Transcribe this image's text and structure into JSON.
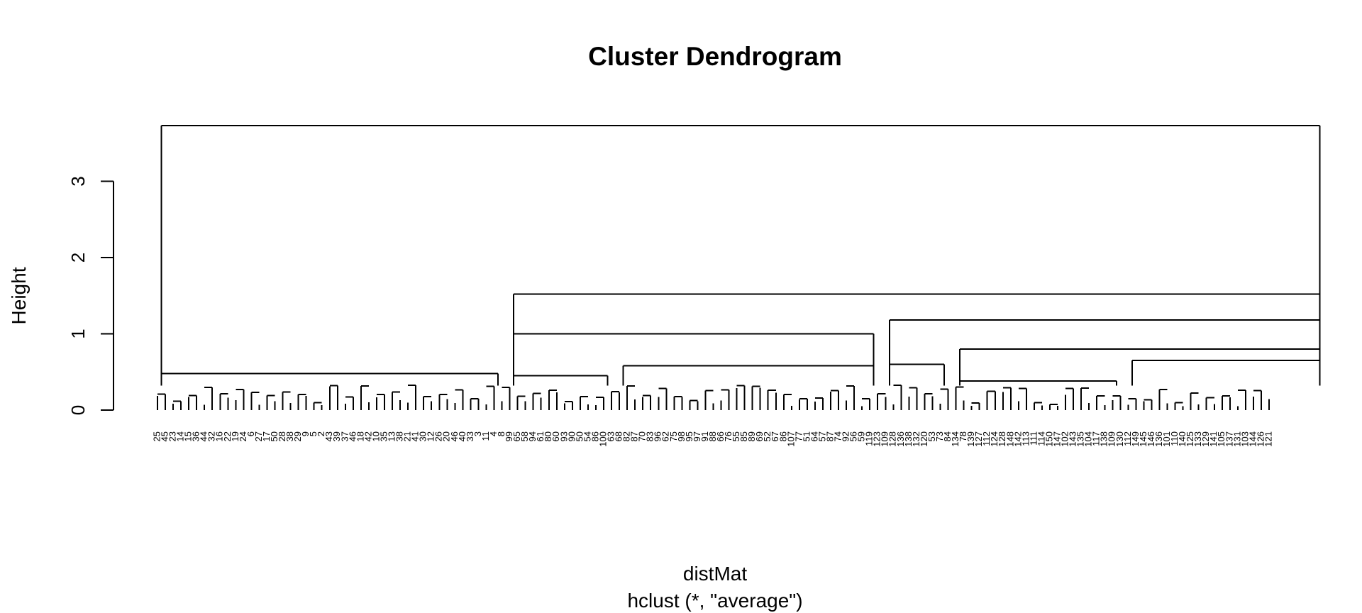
{
  "chart_data": {
    "type": "dendrogram",
    "title": "Cluster Dendrogram",
    "xlabel": "distMat",
    "sublabel": "hclust (*, \"average\")",
    "ylabel": "Height",
    "yticks": [
      0,
      1,
      2,
      3
    ],
    "ylim": [
      0,
      3.8
    ],
    "leaf_labels": [
      "25",
      "45",
      "23",
      "14",
      "15",
      "36",
      "44",
      "32",
      "16",
      "22",
      "19",
      "24",
      "6",
      "27",
      "17",
      "50",
      "28",
      "38",
      "29",
      "9",
      "5",
      "2",
      "43",
      "39",
      "37",
      "46",
      "18",
      "42",
      "10",
      "35",
      "13",
      "38",
      "21",
      "41",
      "30",
      "12",
      "26",
      "20",
      "46",
      "40",
      "33",
      "3",
      "11",
      "4",
      "8",
      "99",
      "65",
      "58",
      "94",
      "61",
      "80",
      "60",
      "93",
      "90",
      "50",
      "54",
      "86",
      "100",
      "63",
      "68",
      "82",
      "87",
      "70",
      "83",
      "96",
      "62",
      "75",
      "98",
      "95",
      "97",
      "91",
      "88",
      "66",
      "76",
      "55",
      "85",
      "89",
      "69",
      "52",
      "67",
      "86",
      "107",
      "77",
      "51",
      "64",
      "57",
      "87",
      "74",
      "92",
      "56",
      "59",
      "119",
      "123",
      "109",
      "128",
      "136",
      "138",
      "132",
      "120",
      "53",
      "73",
      "84",
      "134",
      "78",
      "139",
      "127",
      "112",
      "124",
      "128",
      "148",
      "142",
      "113",
      "111",
      "114",
      "150",
      "147",
      "102",
      "143",
      "135",
      "104",
      "117",
      "138",
      "109",
      "130",
      "112",
      "149",
      "145",
      "146",
      "136",
      "101",
      "110",
      "140",
      "125",
      "133",
      "129",
      "141",
      "105",
      "137",
      "131",
      "103",
      "144",
      "126",
      "121"
    ],
    "merges": [
      {
        "left": 0,
        "right": 44,
        "height": 0.48
      },
      {
        "left": 45,
        "right": 92,
        "height": 1.0
      },
      {
        "left": 93,
        "right": 149,
        "height": 1.18
      },
      {
        "left": 45,
        "right": 149,
        "height": 1.52
      },
      {
        "left": 0,
        "right": 149,
        "height": 3.73
      },
      {
        "left": 45,
        "right": 58,
        "height": 0.45
      },
      {
        "left": 59,
        "right": 92,
        "height": 0.58
      },
      {
        "left": 93,
        "right": 101,
        "height": 0.6
      },
      {
        "left": 102,
        "right": 149,
        "height": 0.8
      },
      {
        "left": 102,
        "right": 123,
        "height": 0.38
      },
      {
        "left": 124,
        "right": 149,
        "height": 0.65
      }
    ]
  }
}
